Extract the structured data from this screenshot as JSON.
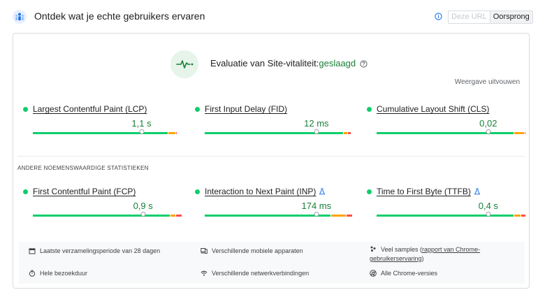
{
  "header": {
    "title": "Ontdek wat je echte gebruikers ervaren",
    "icon": "people-icon",
    "toggle": {
      "this_url": "Deze URL",
      "origin": "Oorsprong",
      "selected": "Oorsprong"
    }
  },
  "evaluation": {
    "label": "Evaluatie van Site-vitaliteit:",
    "status": "geslaagd",
    "status_color": "#188038",
    "expand_label": "Weergave uitvouwen"
  },
  "core_metrics": [
    {
      "name": "Largest Contentful Paint (LCP)",
      "value": "1,1 s",
      "experimental": false,
      "bar": {
        "good": 0.9,
        "ok": 0.05,
        "poor": 0.01,
        "marker": 0.72
      }
    },
    {
      "name": "First Input Delay (FID)",
      "value": "12 ms",
      "experimental": false,
      "bar": {
        "good": 0.92,
        "ok": 0.03,
        "poor": 0.02,
        "marker": 0.74
      }
    },
    {
      "name": "Cumulative Layout Shift (CLS)",
      "value": "0,02",
      "experimental": false,
      "bar": {
        "good": 0.91,
        "ok": 0.07,
        "poor": 0.01,
        "marker": 0.74
      }
    }
  ],
  "other_section_title": "ANDERE NOEMENSWAARDIGE STATISTIEKEN",
  "other_metrics": [
    {
      "name": "First Contentful Paint (FCP)",
      "value": "0,9 s",
      "experimental": false,
      "bar": {
        "good": 0.91,
        "ok": 0.04,
        "poor": 0.04,
        "marker": 0.73
      }
    },
    {
      "name": "Interaction to Next Paint (INP)",
      "value": "174 ms",
      "experimental": true,
      "bar": {
        "good": 0.84,
        "ok": 0.1,
        "poor": 0.04,
        "marker": 0.74
      }
    },
    {
      "name": "Time to First Byte (TTFB)",
      "value": "0,4 s",
      "experimental": true,
      "bar": {
        "good": 0.91,
        "ok": 0.05,
        "poor": 0.03,
        "marker": 0.74
      }
    }
  ],
  "info": {
    "period": "Laatste verzamelingsperiode van 28 dagen",
    "devices": "Verschillende mobiele apparaten",
    "samples_prefix": "Veel samples (",
    "samples_link": "rapport van Chrome-gebruikerservaring",
    "samples_suffix": ")",
    "duration": "Hele bezoekduur",
    "network": "Verschillende netwerkverbindingen",
    "chrome": "Alle Chrome-versies"
  }
}
